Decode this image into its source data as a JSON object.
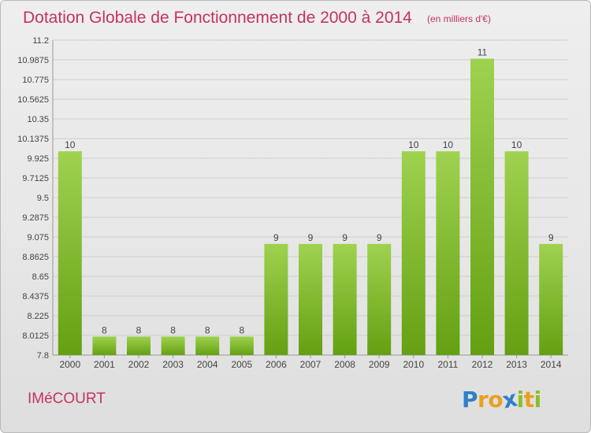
{
  "header": {
    "title": "Dotation Globale de Fonctionnement de 2000 à 2014",
    "unit_note": "(en milliers d'€)"
  },
  "footer": {
    "commune": "IMéCOURT",
    "logo_letters": [
      "P",
      "r",
      "o",
      "x",
      "i",
      "t",
      "i"
    ],
    "logo_colors": [
      "#2f7fc9",
      "#e8a020",
      "#e8a020",
      "#2f7fc9",
      "#8bbf2a",
      "#e8a020",
      "#8bbf2a"
    ]
  },
  "colors": {
    "bar_light": "#9fd24f",
    "bar_dark": "#64a012",
    "grid": "#cfcfcf",
    "axis_text": "#444444",
    "title": "#c4345c"
  },
  "chart_data": {
    "type": "bar",
    "title": "Dotation Globale de Fonctionnement de 2000 à 2014",
    "subtitle": "(en milliers d'€)",
    "xlabel": "",
    "ylabel": "",
    "categories": [
      "2000",
      "2001",
      "2002",
      "2003",
      "2004",
      "2005",
      "2006",
      "2007",
      "2008",
      "2009",
      "2010",
      "2011",
      "2012",
      "2013",
      "2014"
    ],
    "values": [
      10,
      8,
      8,
      8,
      8,
      8,
      9,
      9,
      9,
      9,
      10,
      10,
      11,
      10,
      9
    ],
    "value_labels": [
      "10",
      "8",
      "8",
      "8",
      "8",
      "8",
      "9",
      "9",
      "9",
      "9",
      "10",
      "10",
      "11",
      "10",
      "9"
    ],
    "ylim": [
      7.8,
      11.2
    ],
    "yticks": [
      "7.8",
      "8.0125",
      "8.225",
      "8.4375",
      "8.65",
      "8.8625",
      "9.075",
      "9.2875",
      "9.5",
      "9.7125",
      "9.925",
      "10.1375",
      "10.35",
      "10.5625",
      "10.775",
      "10.9875",
      "11.2"
    ],
    "grid": true,
    "legend": "none"
  }
}
